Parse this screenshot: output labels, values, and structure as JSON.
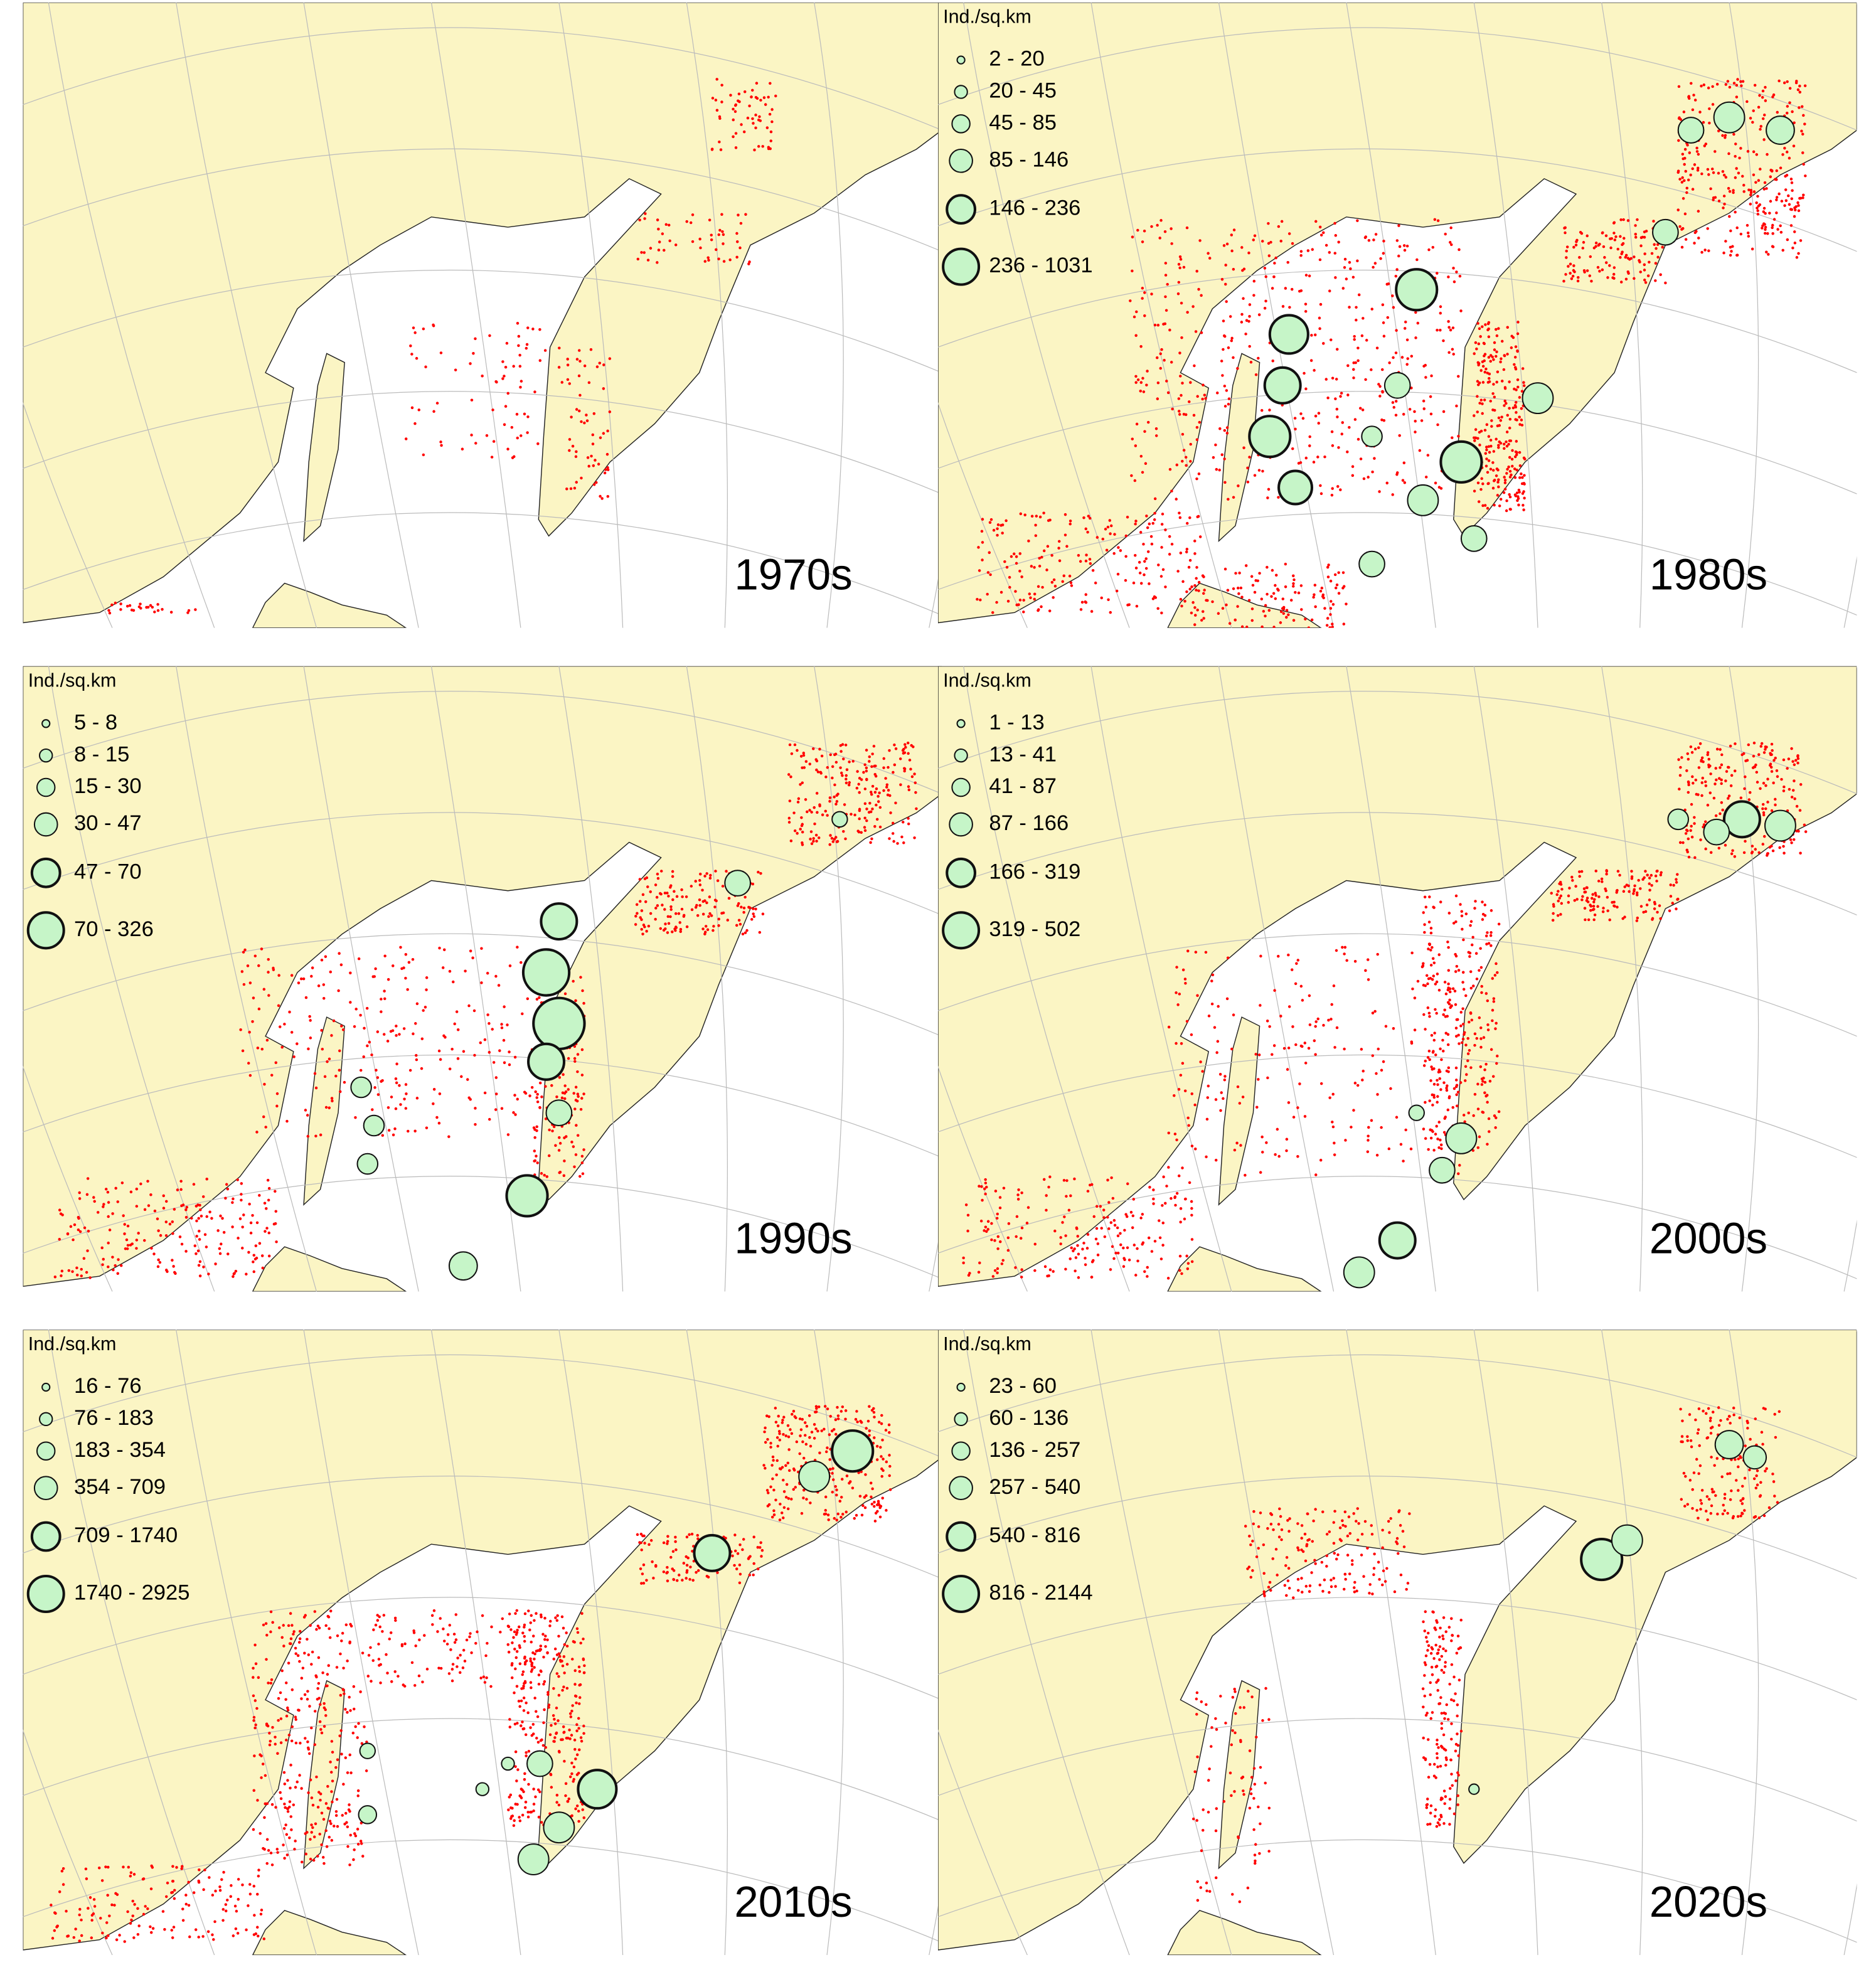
{
  "panels": [
    {
      "label": "1970s"
    },
    {
      "label": "1980s",
      "legend": {
        "title": "Ind./sq.km",
        "classes": [
          "2 - 20",
          "20 - 45",
          "45 - 85",
          "85 - 146",
          "146 - 236",
          "236 - 1031"
        ]
      }
    },
    {
      "label": "1990s",
      "legend": {
        "title": "Ind./sq.km",
        "classes": [
          "5 - 8",
          "8 - 15",
          "15 - 30",
          "30 - 47",
          "47 - 70",
          "70 - 326"
        ]
      }
    },
    {
      "label": "2000s",
      "legend": {
        "title": "Ind./sq.km",
        "classes": [
          "1 - 13",
          "13 - 41",
          "41 - 87",
          "87 - 166",
          "166 - 319",
          "319 - 502"
        ]
      }
    },
    {
      "label": "2010s",
      "legend": {
        "title": "Ind./sq.km",
        "classes": [
          "16 - 76",
          "76 - 183",
          "183 - 354",
          "354 - 709",
          "709 - 1740",
          "1740 - 2925"
        ]
      }
    },
    {
      "label": "2020s",
      "legend": {
        "title": "Ind./sq.km",
        "classes": [
          "23 - 60",
          "60 - 136",
          "136 - 257",
          "257 - 540",
          "540 - 816",
          "816 - 2144"
        ]
      }
    }
  ]
}
